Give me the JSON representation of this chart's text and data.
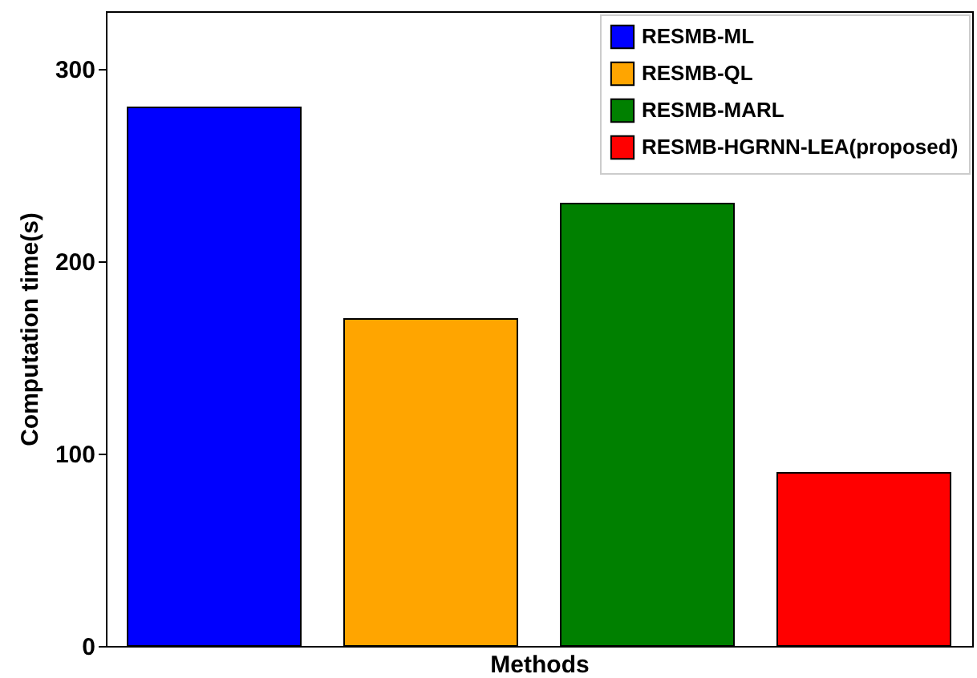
{
  "chart_data": {
    "type": "bar",
    "xlabel": "Methods",
    "ylabel": "Computation time(s)",
    "categories": [
      null,
      null,
      null,
      null
    ],
    "series": [
      {
        "name": "RESMB-ML",
        "color": "#0000ff",
        "values": [
          280,
          null,
          null,
          null
        ]
      },
      {
        "name": "RESMB-QL",
        "color": "#ffa500",
        "values": [
          null,
          170,
          null,
          null
        ]
      },
      {
        "name": "RESMB-MARL",
        "color": "#008000",
        "values": [
          null,
          null,
          230,
          null
        ]
      },
      {
        "name": "RESMB-HGRNN-LEA(proposed)",
        "color": "#ff0000",
        "values": [
          null,
          null,
          null,
          90
        ]
      }
    ],
    "stacked": true,
    "ylim": [
      0,
      330
    ],
    "yticks": [
      0,
      100,
      200,
      300
    ],
    "tick_labels": "y",
    "legend": "top right"
  }
}
